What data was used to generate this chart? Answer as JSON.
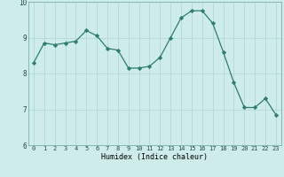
{
  "x": [
    0,
    1,
    2,
    3,
    4,
    5,
    6,
    7,
    8,
    9,
    10,
    11,
    12,
    13,
    14,
    15,
    16,
    17,
    18,
    19,
    20,
    21,
    22,
    23
  ],
  "y": [
    8.3,
    8.85,
    8.8,
    8.85,
    8.9,
    9.2,
    9.05,
    8.7,
    8.65,
    8.15,
    8.15,
    8.2,
    8.45,
    9.0,
    9.55,
    9.75,
    9.75,
    9.4,
    8.6,
    7.75,
    7.05,
    7.05,
    7.3,
    6.85
  ],
  "xlabel": "Humidex (Indice chaleur)",
  "line_color": "#2e7d6e",
  "marker": "D",
  "marker_size": 2.2,
  "bg_color": "#ceecea",
  "grid_color": "#b8dbd8",
  "plot_bg": "#ceecea",
  "ylim": [
    6,
    10
  ],
  "xlim": [
    -0.5,
    23.5
  ],
  "yticks": [
    6,
    7,
    8,
    9,
    10
  ],
  "xticks": [
    0,
    1,
    2,
    3,
    4,
    5,
    6,
    7,
    8,
    9,
    10,
    11,
    12,
    13,
    14,
    15,
    16,
    17,
    18,
    19,
    20,
    21,
    22,
    23
  ]
}
